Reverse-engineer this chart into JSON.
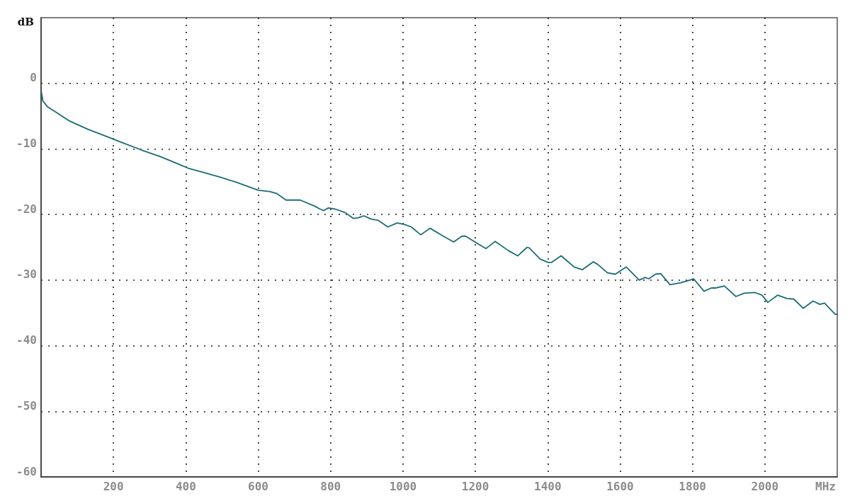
{
  "chart_data": {
    "type": "line",
    "xlabel": "MHz",
    "ylabel": "dB",
    "x": [
      1,
      5,
      18,
      44,
      77,
      129,
      181,
      227,
      279,
      331,
      383,
      409,
      450,
      500,
      540,
      580,
      600,
      631,
      651,
      677,
      716,
      755,
      772,
      781,
      794,
      814,
      840,
      863,
      876,
      892,
      912,
      932,
      958,
      984,
      1003,
      1023,
      1049,
      1075,
      1108,
      1140,
      1163,
      1173,
      1199,
      1229,
      1255,
      1291,
      1317,
      1343,
      1349,
      1379,
      1401,
      1411,
      1437,
      1454,
      1473,
      1496,
      1526,
      1538,
      1565,
      1587,
      1617,
      1653,
      1669,
      1679,
      1698,
      1712,
      1738,
      1767,
      1793,
      1803,
      1832,
      1852,
      1865,
      1888,
      1920,
      1943,
      1973,
      1992,
      2008,
      2035,
      2061,
      2080,
      2106,
      2133,
      2152,
      2165,
      2194,
      2200
    ],
    "series": [
      {
        "color": "#1b6d74",
        "values": [
          -1.4,
          -2.7,
          -3.6,
          -4.5,
          -5.7,
          -7.0,
          -8.1,
          -9.1,
          -10.2,
          -11.2,
          -12.4,
          -13.0,
          -13.6,
          -14.4,
          -15.1,
          -15.9,
          -16.3,
          -16.5,
          -16.8,
          -17.8,
          -17.8,
          -18.7,
          -19.2,
          -19.4,
          -19.0,
          -19.2,
          -19.7,
          -20.6,
          -20.5,
          -20.2,
          -20.7,
          -20.9,
          -21.9,
          -21.3,
          -21.5,
          -21.9,
          -23.1,
          -22.1,
          -23.2,
          -24.2,
          -23.3,
          -23.3,
          -24.2,
          -25.2,
          -24.1,
          -25.5,
          -26.3,
          -25.0,
          -25.1,
          -26.8,
          -27.3,
          -27.3,
          -26.3,
          -27.1,
          -28.0,
          -28.4,
          -27.2,
          -27.6,
          -28.9,
          -29.1,
          -28.0,
          -30.0,
          -29.6,
          -29.8,
          -29.1,
          -29.0,
          -30.7,
          -30.4,
          -30.0,
          -29.8,
          -31.7,
          -31.2,
          -31.2,
          -30.9,
          -32.5,
          -32.0,
          -31.9,
          -32.3,
          -33.4,
          -32.3,
          -32.8,
          -32.9,
          -34.3,
          -33.2,
          -33.7,
          -33.5,
          -35.2,
          -35.2
        ]
      }
    ],
    "xlim": [
      0,
      2200
    ],
    "xticks": [
      200,
      400,
      600,
      800,
      1000,
      1200,
      1400,
      1600,
      1800,
      2000
    ],
    "ylim": [
      -60,
      10
    ],
    "yticks": [
      -60,
      -50,
      -40,
      -30,
      -20,
      -10,
      0
    ],
    "grid": true,
    "marker": "none",
    "line_style": "solid"
  }
}
